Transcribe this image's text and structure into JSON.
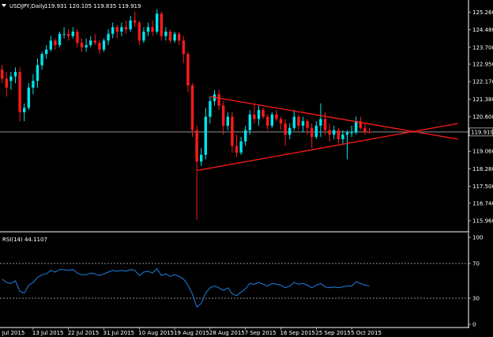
{
  "header": {
    "symbol": "USDJPY,Daily",
    "ohlc": "119.931 120.105 119.835 119.919",
    "menu_arrow": "triangle-down-icon"
  },
  "rsi_panel": {
    "label": "RSI(14) 44.1107"
  },
  "current_price_label": "119.919",
  "colors": {
    "background": "#000000",
    "bull": "#00e5ee",
    "bear": "#ff1a1a",
    "trendline": "#ff1a1a",
    "rsi_line": "#1e7fe0",
    "axis": "#ffffff",
    "level_line": "#c0c0c0"
  },
  "chart_data": [
    {
      "type": "candlestick",
      "title": "USDJPY,Daily",
      "ylim": [
        115.5,
        125.6
      ],
      "y_ticks": [
        "125.260",
        "124.480",
        "123.700",
        "122.950",
        "122.170",
        "121.380",
        "120.600",
        "119.919",
        "119.060",
        "118.280",
        "117.500",
        "116.740",
        "115.960"
      ],
      "x_ticks": [
        "3 Jul 2015",
        "13 Jul 2015",
        "22 Jul 2015",
        "31 Jul 2015",
        "10 Aug 2015",
        "19 Aug 2015",
        "28 Aug 2015",
        "7 Sep 2015",
        "16 Sep 2015",
        "25 Sep 2015",
        "5 Oct 2015"
      ],
      "last_price": 119.919,
      "candles": [
        [
          122.7,
          122.9,
          122.1,
          122.3
        ],
        [
          122.3,
          122.6,
          121.5,
          121.9
        ],
        [
          122.2,
          122.6,
          121.8,
          122.4
        ],
        [
          122.4,
          122.8,
          122.1,
          122.6
        ],
        [
          122.6,
          122.8,
          120.4,
          120.8
        ],
        [
          120.8,
          121.2,
          120.4,
          121.0
        ],
        [
          121.0,
          122.1,
          120.9,
          121.9
        ],
        [
          121.9,
          122.5,
          121.6,
          122.2
        ],
        [
          122.2,
          123.2,
          121.9,
          122.9
        ],
        [
          122.9,
          123.5,
          122.7,
          123.4
        ],
        [
          123.4,
          123.8,
          123.2,
          123.6
        ],
        [
          123.6,
          124.2,
          123.5,
          124.0
        ],
        [
          124.0,
          124.1,
          123.6,
          123.8
        ],
        [
          123.8,
          124.4,
          123.7,
          124.3
        ],
        [
          124.3,
          124.6,
          124.1,
          124.3
        ],
        [
          124.3,
          124.5,
          124.0,
          124.2
        ],
        [
          124.2,
          124.6,
          124.1,
          124.4
        ],
        [
          124.4,
          124.5,
          123.7,
          123.9
        ],
        [
          123.9,
          124.1,
          123.5,
          123.7
        ],
        [
          123.7,
          124.1,
          123.5,
          123.8
        ],
        [
          123.8,
          124.2,
          123.7,
          124.0
        ],
        [
          124.0,
          124.3,
          123.8,
          123.9
        ],
        [
          123.9,
          124.0,
          123.4,
          123.6
        ],
        [
          123.6,
          124.1,
          123.5,
          124.0
        ],
        [
          124.0,
          124.5,
          123.8,
          124.3
        ],
        [
          124.3,
          124.8,
          124.1,
          124.6
        ],
        [
          124.6,
          124.7,
          124.1,
          124.4
        ],
        [
          124.4,
          124.8,
          124.2,
          124.6
        ],
        [
          124.6,
          124.9,
          124.3,
          124.5
        ],
        [
          124.5,
          125.1,
          124.4,
          124.9
        ],
        [
          124.9,
          125.3,
          124.6,
          124.8
        ],
        [
          124.8,
          124.9,
          123.8,
          124.0
        ],
        [
          124.0,
          124.6,
          123.9,
          124.4
        ],
        [
          124.4,
          124.8,
          124.2,
          124.6
        ],
        [
          124.6,
          124.9,
          124.2,
          124.4
        ],
        [
          124.4,
          125.4,
          124.3,
          125.2
        ],
        [
          125.2,
          125.3,
          124.0,
          124.2
        ],
        [
          124.2,
          124.6,
          124.0,
          124.4
        ],
        [
          124.4,
          124.5,
          123.9,
          124.0
        ],
        [
          124.0,
          124.4,
          123.9,
          124.3
        ],
        [
          124.3,
          124.4,
          123.8,
          124.0
        ],
        [
          124.0,
          124.2,
          123.0,
          123.4
        ],
        [
          123.4,
          123.5,
          121.7,
          122.0
        ],
        [
          122.0,
          122.1,
          119.7,
          120.0
        ],
        [
          120.0,
          120.2,
          116.0,
          118.6
        ],
        [
          118.6,
          119.2,
          118.4,
          118.9
        ],
        [
          118.9,
          121.0,
          118.7,
          120.6
        ],
        [
          120.6,
          121.5,
          120.3,
          121.3
        ],
        [
          121.3,
          121.8,
          121.1,
          121.6
        ],
        [
          121.6,
          121.8,
          120.9,
          121.1
        ],
        [
          121.1,
          121.3,
          119.8,
          120.2
        ],
        [
          120.2,
          120.8,
          120.0,
          120.6
        ],
        [
          120.6,
          120.8,
          119.0,
          119.3
        ],
        [
          119.3,
          119.8,
          118.8,
          119.0
        ],
        [
          119.0,
          119.7,
          118.9,
          119.5
        ],
        [
          119.5,
          120.2,
          119.3,
          120.0
        ],
        [
          120.0,
          120.9,
          119.8,
          120.7
        ],
        [
          120.7,
          121.2,
          120.3,
          120.5
        ],
        [
          120.5,
          121.1,
          120.2,
          120.9
        ],
        [
          120.9,
          121.0,
          120.5,
          120.6
        ],
        [
          120.6,
          120.7,
          120.0,
          120.2
        ],
        [
          120.2,
          120.8,
          120.1,
          120.7
        ],
        [
          120.7,
          120.9,
          120.4,
          120.5
        ],
        [
          120.5,
          120.6,
          120.0,
          120.3
        ],
        [
          120.3,
          120.5,
          119.3,
          119.8
        ],
        [
          119.8,
          120.3,
          119.6,
          120.1
        ],
        [
          120.1,
          120.9,
          120.0,
          120.6
        ],
        [
          120.6,
          120.7,
          120.0,
          120.2
        ],
        [
          120.2,
          120.6,
          119.9,
          120.4
        ],
        [
          120.4,
          120.5,
          119.8,
          120.1
        ],
        [
          120.1,
          120.3,
          119.2,
          119.7
        ],
        [
          119.7,
          120.4,
          119.6,
          120.2
        ],
        [
          120.2,
          121.2,
          119.7,
          120.5
        ],
        [
          120.5,
          120.8,
          119.8,
          120.0
        ],
        [
          120.0,
          120.3,
          119.5,
          119.8
        ],
        [
          119.8,
          120.2,
          119.6,
          120.0
        ],
        [
          120.0,
          120.1,
          119.4,
          119.6
        ],
        [
          119.6,
          120.0,
          119.4,
          119.8
        ],
        [
          119.8,
          120.0,
          118.7,
          119.9
        ],
        [
          119.9,
          120.2,
          119.7,
          119.9
        ],
        [
          119.9,
          120.6,
          119.8,
          120.4
        ],
        [
          120.4,
          120.6,
          120.0,
          120.1
        ],
        [
          120.1,
          120.3,
          119.8,
          119.9
        ],
        [
          119.931,
          120.105,
          119.835,
          119.919
        ]
      ],
      "trendlines": [
        {
          "x": [
            44,
            103
          ],
          "y": [
            118.2,
            120.3
          ]
        },
        {
          "x": [
            47,
            103
          ],
          "y": [
            121.5,
            119.6
          ]
        }
      ]
    },
    {
      "type": "line",
      "title": "RSI(14) 44.1107",
      "ylim": [
        0,
        100
      ],
      "y_ticks": [
        100,
        70,
        30,
        0
      ],
      "levels": [
        70,
        30
      ],
      "series": [
        {
          "values": [
            52,
            48,
            47,
            50,
            38,
            36,
            45,
            48,
            54,
            57,
            58,
            62,
            60,
            63,
            63,
            62,
            63,
            59,
            57,
            57,
            59,
            58,
            56,
            58,
            60,
            62,
            61,
            62,
            61,
            63,
            62,
            56,
            60,
            61,
            59,
            64,
            56,
            58,
            55,
            57,
            55,
            52,
            45,
            35,
            20,
            24,
            36,
            42,
            44,
            42,
            39,
            42,
            35,
            33,
            37,
            41,
            47,
            46,
            48,
            46,
            44,
            47,
            46,
            45,
            42,
            44,
            48,
            46,
            47,
            45,
            42,
            45,
            47,
            43,
            42,
            43,
            42,
            43,
            44,
            44,
            49,
            47,
            45,
            44.1107
          ]
        }
      ]
    }
  ]
}
